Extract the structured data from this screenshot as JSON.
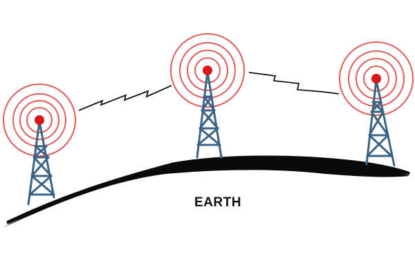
{
  "diagram": {
    "earth_label": "EARTH",
    "towers": [
      {
        "id": "tower-left"
      },
      {
        "id": "tower-center"
      },
      {
        "id": "tower-right"
      }
    ],
    "links": [
      {
        "from": "tower-left",
        "to": "tower-center"
      },
      {
        "from": "tower-center",
        "to": "tower-right"
      }
    ],
    "colors": {
      "tower": "#3a6283",
      "beacon": "#d9171b",
      "signal_rings": "#e05a5a",
      "ground": "#0a0a0a",
      "link": "#111111",
      "label": "#111111"
    }
  }
}
